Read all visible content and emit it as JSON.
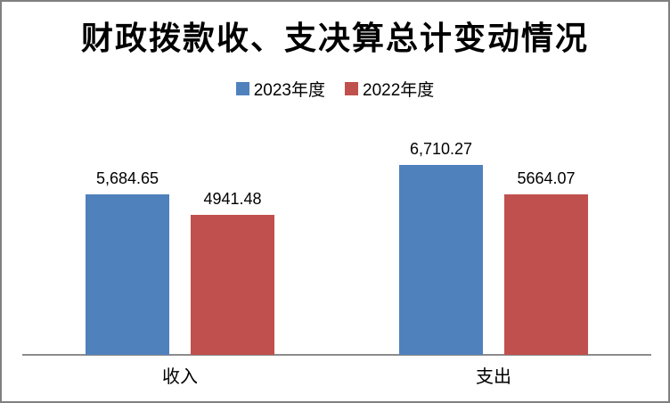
{
  "chart_data": {
    "type": "bar",
    "title": "财政拨款收、支决算总计变动情况",
    "categories": [
      "收入",
      "支出"
    ],
    "series": [
      {
        "name": "2023年度",
        "color": "#4F81BD",
        "values": [
          5684.65,
          6710.27
        ],
        "labels": [
          "5,684.65",
          "6,710.27"
        ]
      },
      {
        "name": "2022年度",
        "color": "#C0504D",
        "values": [
          4941.48,
          5664.07
        ],
        "labels": [
          "4941.48",
          "5664.07"
        ]
      }
    ],
    "xlabel": "",
    "ylabel": "",
    "ylim": [
      0,
      7000
    ],
    "legend_position": "top",
    "grid": false,
    "axis_color": "#8c8c8c",
    "border_color": "#808080",
    "background_color": "#ffffff",
    "text_color": "#000000"
  }
}
